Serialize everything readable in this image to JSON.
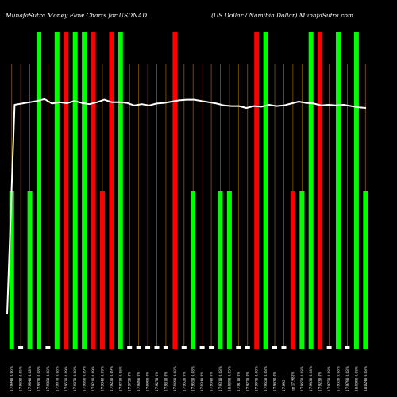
{
  "chart_data": {
    "type": "bar",
    "title_left": "MunafaSutra  Money Flow  Charts for USDNAD",
    "title_right": "(US Dollar / Namibia  Dollar) MunafaSutra.com",
    "bar_scale": [
      0,
      100
    ],
    "line_scale": [
      0,
      100
    ],
    "colors": {
      "up": "#00ff00",
      "down": "#ff0000",
      "flat": "#ffffff",
      "line": "#ffffff",
      "grid": "#8b5a00",
      "background": "#000000"
    },
    "bars": [
      {
        "label": "17.9948 0.06%",
        "value": 50,
        "color": "up"
      },
      {
        "label": "17.9638 0.05%",
        "value": 1,
        "color": "flat"
      },
      {
        "label": "17.9848 0.08%",
        "value": 50,
        "color": "up"
      },
      {
        "label": "17.9878 0.08%",
        "value": 100,
        "color": "up"
      },
      {
        "label": "17.9858 0.08%",
        "value": 1,
        "color": "flat"
      },
      {
        "label": "17.9978 0.08%",
        "value": 100,
        "color": "up"
      },
      {
        "label": "17.9538 0.09%",
        "value": 100,
        "color": "down"
      },
      {
        "label": "17.9878 0.08%",
        "value": 100,
        "color": "up"
      },
      {
        "label": "17.9698 0.09%",
        "value": 100,
        "color": "up"
      },
      {
        "label": "17.9218 0.09%",
        "value": 100,
        "color": "down"
      },
      {
        "label": "17.9348 0.09%",
        "value": 50,
        "color": "down"
      },
      {
        "label": "17.9238 0.09%",
        "value": 100,
        "color": "down"
      },
      {
        "label": "17.9718 0.08%",
        "value": 100,
        "color": "up"
      },
      {
        "label": "17.9738 0%",
        "value": 1,
        "color": "flat"
      },
      {
        "label": "17.9898 0%",
        "value": 1,
        "color": "flat"
      },
      {
        "label": "17.9998 0%",
        "value": 1,
        "color": "flat"
      },
      {
        "label": "17.9278 0%",
        "value": 1,
        "color": "flat"
      },
      {
        "label": "17.9818 0%",
        "value": 1,
        "color": "flat"
      },
      {
        "label": "17.9698 0.08%",
        "value": 100,
        "color": "down"
      },
      {
        "label": "17.9528 0%",
        "value": 1,
        "color": "flat"
      },
      {
        "label": "17.9558 0.08%",
        "value": 50,
        "color": "up"
      },
      {
        "label": "17.9348 0%",
        "value": 1,
        "color": "flat"
      },
      {
        "label": "17.9348 0%",
        "value": 1,
        "color": "flat"
      },
      {
        "label": "17.9318 0.08%",
        "value": 50,
        "color": "up"
      },
      {
        "label": "18.0098 0.05%",
        "value": 50,
        "color": "up"
      },
      {
        "label": "17.9118 0%",
        "value": 1,
        "color": "flat"
      },
      {
        "label": "17.9278 0%",
        "value": 1,
        "color": "flat"
      },
      {
        "label": "17.9978 0.08%",
        "value": 100,
        "color": "down"
      },
      {
        "label": "17.9658 0.08%",
        "value": 100,
        "color": "up"
      },
      {
        "label": "17.9638 0%",
        "value": 1,
        "color": "flat"
      },
      {
        "label": "17.995",
        "value": 1,
        "color": "flat"
      },
      {
        "label": "nn 17.988%",
        "value": 50,
        "color": "down"
      },
      {
        "label": "17.9658 0.08%",
        "value": 50,
        "color": "up"
      },
      {
        "label": "17.9438 0.08%",
        "value": 100,
        "color": "up"
      },
      {
        "label": "17.9238 0%",
        "value": 100,
        "color": "down"
      },
      {
        "label": "17.9758 0.08%",
        "value": 1,
        "color": "flat"
      },
      {
        "label": "17.9358 0.08%",
        "value": 100,
        "color": "up"
      },
      {
        "label": "17.9798 0.08%",
        "value": 1,
        "color": "flat"
      },
      {
        "label": "18.0098 0.08%",
        "value": 100,
        "color": "up"
      },
      {
        "label": "18.0248 0.08%",
        "value": 50,
        "color": "up"
      }
    ],
    "line": [
      11,
      77,
      77.4,
      77.8,
      78.2,
      78.8,
      77.4,
      77.8,
      77.5,
      78.2,
      77.6,
      77.2,
      77.8,
      78.6,
      77.8,
      77.8,
      77.6,
      76.8,
      77.2,
      76.8,
      77.4,
      77.6,
      78,
      78.4,
      78.6,
      78.6,
      78.2,
      77.8,
      77.4,
      76.8,
      76.6,
      76.6,
      76,
      76.6,
      76.4,
      77,
      76.6,
      76.8,
      77.4,
      78,
      77.6,
      77.4,
      76.8,
      77,
      76.8,
      77,
      76.6,
      76.2,
      76
    ]
  }
}
